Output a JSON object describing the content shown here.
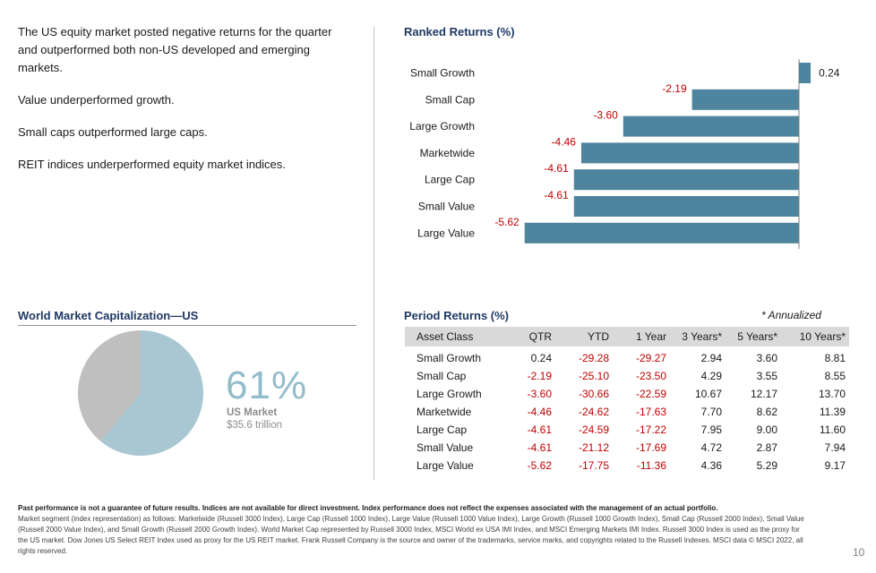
{
  "bullets": [
    "The US equity market posted negative returns for the quarter and outperformed both non-US developed and emerging markets.",
    "Value underperformed growth.",
    "Small caps outperformed large caps.",
    "REIT indices underperformed equity market indices."
  ],
  "ranked": {
    "title": "Ranked Returns (%)"
  },
  "chart_data": {
    "type": "bar",
    "orientation": "horizontal",
    "title": "Ranked Returns (%)",
    "categories": [
      "Small Growth",
      "Small Cap",
      "Large Growth",
      "Marketwide",
      "Large Cap",
      "Small Value",
      "Large Value"
    ],
    "values": [
      0.24,
      -2.19,
      -3.6,
      -4.46,
      -4.61,
      -4.61,
      -5.62
    ],
    "labels": [
      "0.24",
      "-2.19",
      "-3.60",
      "-4.46",
      "-4.61",
      "-4.61",
      "-5.62"
    ],
    "colors": {
      "bar": "#4f849e",
      "negative_label": "#c00000",
      "positive_label": "#1a1a1a"
    }
  },
  "world_cap": {
    "title": "World Market Capitalization—US",
    "percent_label": "61%",
    "us_share": 0.61,
    "market_label": "US Market",
    "market_value": "$35.6 trillion",
    "colors": {
      "us": "#a8c7d2",
      "rest": "#bfbfbf",
      "percent_text": "#93bccb"
    }
  },
  "period": {
    "title": "Period Returns (%)",
    "annualized_note": "* Annualized",
    "headers": [
      "Asset Class",
      "QTR",
      "YTD",
      "1 Year",
      "3 Years*",
      "5 Years*",
      "10 Years*"
    ],
    "rows": [
      [
        "Small Growth",
        "0.24",
        "-29.28",
        "-29.27",
        "2.94",
        "3.60",
        "8.81"
      ],
      [
        "Small Cap",
        "-2.19",
        "-25.10",
        "-23.50",
        "4.29",
        "3.55",
        "8.55"
      ],
      [
        "Large Growth",
        "-3.60",
        "-30.66",
        "-22.59",
        "10.67",
        "12.17",
        "13.70"
      ],
      [
        "Marketwide",
        "-4.46",
        "-24.62",
        "-17.63",
        "7.70",
        "8.62",
        "11.39"
      ],
      [
        "Large Cap",
        "-4.61",
        "-24.59",
        "-17.22",
        "7.95",
        "9.00",
        "11.60"
      ],
      [
        "Small Value",
        "-4.61",
        "-21.12",
        "-17.69",
        "4.72",
        "2.87",
        "7.94"
      ],
      [
        "Large Value",
        "-5.62",
        "-17.75",
        "-11.36",
        "4.36",
        "5.29",
        "9.17"
      ]
    ]
  },
  "footnote": {
    "bold": "Past performance is not a guarantee of future results. Indices are not available for direct investment. Index performance does not reflect the expenses associated with the management of an actual portfolio.",
    "text": "Market segment (index representation) as follows: Marketwide (Russell 3000 Index), Large Cap (Russell 1000 Index), Large Value (Russell 1000 Value Index), Large Growth (Russell 1000 Growth Index), Small Cap (Russell 2000 Index), Small Value (Russell 2000 Value Index), and Small Growth (Russell 2000 Growth Index). World Market Cap represented by Russell 3000 Index, MSCI World ex USA IMI Index, and MSCI Emerging Markets IMI Index. Russell 3000 Index is used as the proxy for the US market. Dow Jones US Select REIT Index used as proxy for the US REIT market. Frank Russell Company is the source and owner of the trademarks, service marks, and copyrights related to the Russell Indexes. MSCI data © MSCI 2022, all rights reserved."
  },
  "page_number": "10"
}
